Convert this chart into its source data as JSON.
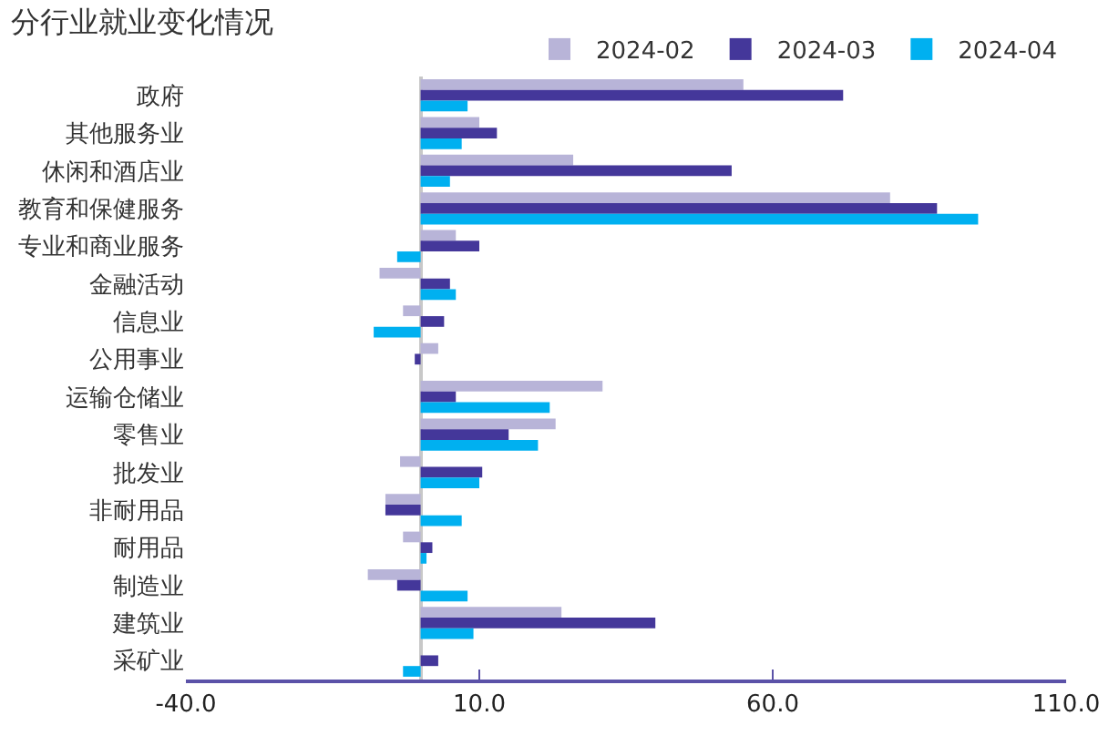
{
  "chart_data": {
    "type": "bar",
    "orientation": "horizontal",
    "title": "分行业就业变化情况",
    "categories": [
      "政府",
      "其他服务业",
      "休闲和酒店业",
      "教育和保健服务",
      "专业和商业服务",
      "金融活动",
      "信息业",
      "公用事业",
      "运输仓储业",
      "零售业",
      "批发业",
      "非耐用品",
      "耐用品",
      "制造业",
      "建筑业",
      "采矿业"
    ],
    "series": [
      {
        "name": "2024-02",
        "color": "#b8b4d8",
        "values": [
          55,
          10,
          26,
          80,
          6,
          -7,
          -3,
          3,
          31,
          23,
          -3.5,
          -6,
          -3,
          -9,
          24,
          0
        ]
      },
      {
        "name": "2024-03",
        "color": "#44379a",
        "values": [
          72,
          13,
          53,
          88,
          10,
          5,
          4,
          -1,
          6,
          15,
          10.5,
          -6,
          2,
          -4,
          40,
          3
        ]
      },
      {
        "name": "2024-04",
        "color": "#00b0f0",
        "values": [
          8,
          7,
          5,
          95,
          -4,
          6,
          -8,
          0,
          22,
          20,
          10,
          7,
          1,
          8,
          9,
          -3
        ]
      }
    ],
    "xlim": [
      -40,
      110
    ],
    "xticks": [
      {
        "value": -40,
        "label": "-40.0"
      },
      {
        "value": 10,
        "label": "10.0"
      },
      {
        "value": 60,
        "label": "60.0"
      },
      {
        "value": 110,
        "label": "110.0"
      }
    ],
    "legend": "top right"
  }
}
